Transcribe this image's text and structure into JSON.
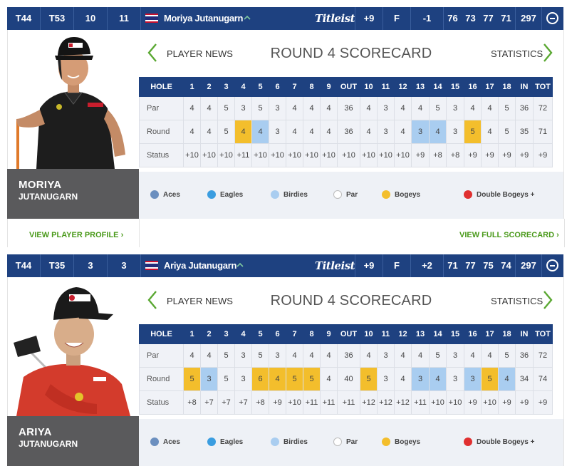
{
  "legend": {
    "aces": "Aces",
    "eagles": "Eagles",
    "birdies": "Birdies",
    "par": "Par",
    "bogeys": "Bogeys",
    "double_bogeys": "Double Bogeys +"
  },
  "colors": {
    "header_bg": "#1e4180",
    "birdie": "#a9cdf0",
    "bogey": "#f3be2c",
    "aces": "#6b8fbf",
    "eagles": "#3a9de0",
    "par": "#ffffff",
    "double_bogey": "#e03030",
    "link_green": "#4a9a1a",
    "chevron_green": "#5aa832"
  },
  "players": [
    {
      "header": {
        "pos": "T44",
        "prev_pos": "T53",
        "thru1": "10",
        "thru2": "11",
        "name": "Moriya Jutanugarn",
        "sponsor": "Titleist",
        "to_par": "+9",
        "thru": "F",
        "today": "-1",
        "r1": "76",
        "r2": "73",
        "r3": "77",
        "r4": "71",
        "total": "297"
      },
      "first_name": "MORIYA",
      "last_name": "JUTANUGARN",
      "nav": {
        "news": "PLAYER NEWS",
        "title": "ROUND 4 SCORECARD",
        "stats": "STATISTICS"
      },
      "columns": [
        "HOLE",
        "1",
        "2",
        "3",
        "4",
        "5",
        "6",
        "7",
        "8",
        "9",
        "OUT",
        "10",
        "11",
        "12",
        "13",
        "14",
        "15",
        "16",
        "17",
        "18",
        "IN",
        "TOT"
      ],
      "par": [
        "Par",
        "4",
        "4",
        "5",
        "3",
        "5",
        "3",
        "4",
        "4",
        "4",
        "36",
        "4",
        "3",
        "4",
        "4",
        "5",
        "3",
        "4",
        "4",
        "5",
        "36",
        "72"
      ],
      "round": [
        "Round",
        "4",
        "4",
        "5",
        "4",
        "4",
        "3",
        "4",
        "4",
        "4",
        "36",
        "4",
        "3",
        "4",
        "3",
        "4",
        "3",
        "5",
        "4",
        "5",
        "35",
        "71"
      ],
      "round_marks": [
        "",
        "",
        "",
        "",
        "bogey",
        "birdie",
        "",
        "",
        "",
        "",
        "",
        "",
        "",
        "",
        "birdie",
        "birdie",
        "",
        "bogey",
        "",
        "",
        "",
        ""
      ],
      "status": [
        "Status",
        "+10",
        "+10",
        "+10",
        "+11",
        "+10",
        "+10",
        "+10",
        "+10",
        "+10",
        "+10",
        "+10",
        "+10",
        "+10",
        "+9",
        "+8",
        "+8",
        "+9",
        "+9",
        "+9",
        "+9",
        "+9"
      ],
      "footer": {
        "profile": "VIEW PLAYER PROFILE",
        "full": "VIEW FULL SCORECARD"
      }
    },
    {
      "header": {
        "pos": "T44",
        "prev_pos": "T35",
        "thru1": "3",
        "thru2": "3",
        "name": "Ariya Jutanugarn",
        "sponsor": "Titleist",
        "to_par": "+9",
        "thru": "F",
        "today": "+2",
        "r1": "71",
        "r2": "77",
        "r3": "75",
        "r4": "74",
        "total": "297"
      },
      "first_name": "ARIYA",
      "last_name": "JUTANUGARN",
      "nav": {
        "news": "PLAYER NEWS",
        "title": "ROUND 4 SCORECARD",
        "stats": "STATISTICS"
      },
      "columns": [
        "HOLE",
        "1",
        "2",
        "3",
        "4",
        "5",
        "6",
        "7",
        "8",
        "9",
        "OUT",
        "10",
        "11",
        "12",
        "13",
        "14",
        "15",
        "16",
        "17",
        "18",
        "IN",
        "TOT"
      ],
      "par": [
        "Par",
        "4",
        "4",
        "5",
        "3",
        "5",
        "3",
        "4",
        "4",
        "4",
        "36",
        "4",
        "3",
        "4",
        "4",
        "5",
        "3",
        "4",
        "4",
        "5",
        "36",
        "72"
      ],
      "round": [
        "Round",
        "5",
        "3",
        "5",
        "3",
        "6",
        "4",
        "5",
        "5",
        "4",
        "40",
        "5",
        "3",
        "4",
        "3",
        "4",
        "3",
        "3",
        "5",
        "4",
        "34",
        "74"
      ],
      "round_marks": [
        "",
        "bogey",
        "birdie",
        "",
        "",
        "bogey",
        "bogey",
        "bogey",
        "bogey",
        "",
        "",
        "bogey",
        "",
        "",
        "birdie",
        "birdie",
        "",
        "birdie",
        "bogey",
        "birdie",
        "",
        ""
      ],
      "status": [
        "Status",
        "+8",
        "+7",
        "+7",
        "+7",
        "+8",
        "+9",
        "+10",
        "+11",
        "+11",
        "+11",
        "+12",
        "+12",
        "+12",
        "+11",
        "+10",
        "+10",
        "+9",
        "+10",
        "+9",
        "+9",
        "+9"
      ],
      "footer": null
    }
  ]
}
